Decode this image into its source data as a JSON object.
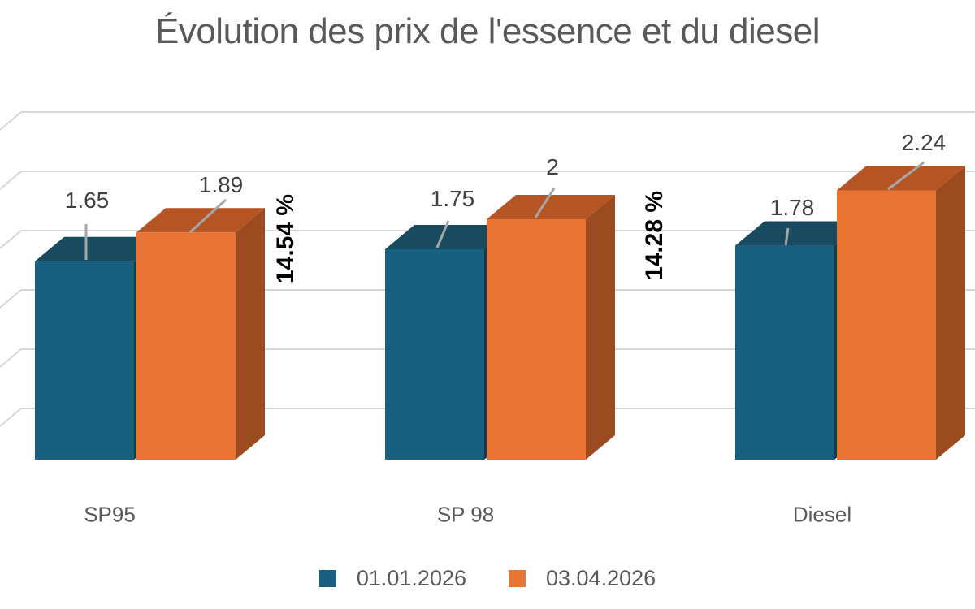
{
  "chart_data": {
    "type": "bar",
    "projection": "3d-clustered",
    "title": "Évolution des prix de l'essence et du diesel",
    "categories": [
      "SP95",
      "SP 98",
      "Diesel"
    ],
    "series": [
      {
        "name": "01.01.2026",
        "values": [
          1.65,
          1.75,
          1.78
        ],
        "labels": [
          "1.65",
          "1.75",
          "1.78"
        ]
      },
      {
        "name": "03.04.2026",
        "values": [
          1.89,
          2,
          2.24
        ],
        "labels": [
          "1.89",
          "2",
          "2.24"
        ]
      }
    ],
    "annotations": [
      {
        "text": "14.54 %",
        "category": "SP95"
      },
      {
        "text": "14.28 %",
        "category": "SP 98"
      }
    ],
    "ylim": [
      0,
      3
    ],
    "grid_interval": 0.5,
    "grid": true,
    "value_axis_labels_visible": false,
    "legend_position": "bottom"
  },
  "colors": {
    "series1_front": "#176080",
    "series1_top": "#184B60",
    "series1_side": "#123C4D",
    "series2_front": "#E87332",
    "series2_top": "#B65524",
    "series2_side": "#9C4A20",
    "gridline": "#D6D6D6",
    "leader_line": "#A6A6A6",
    "data_label": "#404040",
    "axis_label": "#595959",
    "percent_label": "#000000",
    "title": "#595959"
  }
}
